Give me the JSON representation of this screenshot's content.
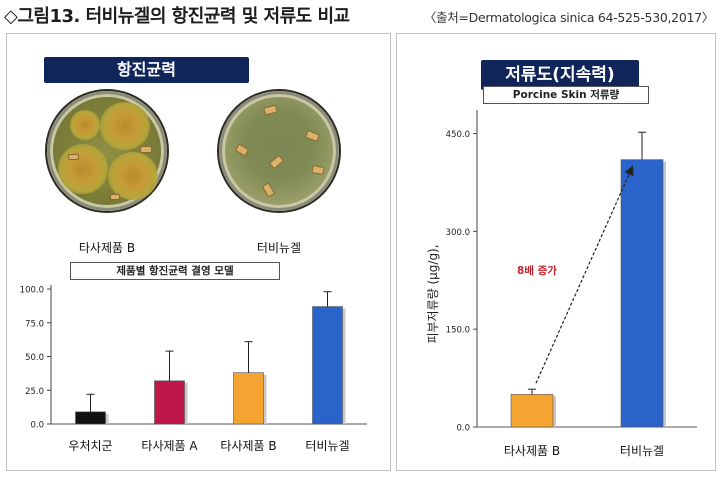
{
  "header": {
    "title": "◇그림13. 터비뉴겔의 항진균력 및 저류도 비교",
    "source": "〈출처=Dermatologica sinica 64-525-530,2017〉"
  },
  "left_panel": {
    "banner": "항진균력",
    "dishes": [
      {
        "label": "타사제품 B"
      },
      {
        "label": "터비뉴겔"
      }
    ],
    "subtitle": "제품별 항진균력 결영 모델"
  },
  "right_panel": {
    "banner": "저류도(지속력)",
    "subtitle": "Porcine Skin 저류량",
    "annotation": "8배 증가"
  },
  "colors": {
    "banner": "#10265b",
    "black": "#111111",
    "crimson": "#c0174b",
    "orange": "#f5a431",
    "blue": "#2a63c9",
    "annotation": "#c0272d"
  },
  "chart_data": [
    {
      "type": "bar",
      "title": "제품별 항진균력 결영 모델",
      "categories": [
        "우처치군",
        "타사제품 A",
        "타사제품 B",
        "터비뉴겔"
      ],
      "values": [
        9,
        32,
        38,
        87
      ],
      "error": [
        13,
        22,
        23,
        11
      ],
      "colors": [
        "#111111",
        "#c0174b",
        "#f5a431",
        "#2a63c9"
      ],
      "ylim": [
        0,
        100
      ],
      "yticks": [
        "0.0",
        "25.0",
        "50.0",
        "75.0",
        "100.0"
      ],
      "ytick_values": [
        0,
        25,
        50,
        75,
        100
      ],
      "xlabel": "",
      "ylabel": ""
    },
    {
      "type": "bar",
      "title": "Porcine Skin 저류량",
      "categories": [
        "타사제품 B",
        "터비뉴겔"
      ],
      "values": [
        50,
        410
      ],
      "error": [
        8,
        42
      ],
      "colors": [
        "#f5a431",
        "#2a63c9"
      ],
      "ylim": [
        0,
        480
      ],
      "yticks": [
        "0.0",
        "150.0",
        "300.0",
        "450.0"
      ],
      "ytick_values": [
        0,
        150,
        300,
        450
      ],
      "ylabel": "피부저류량 (μg/g),",
      "xlabel": ""
    }
  ]
}
